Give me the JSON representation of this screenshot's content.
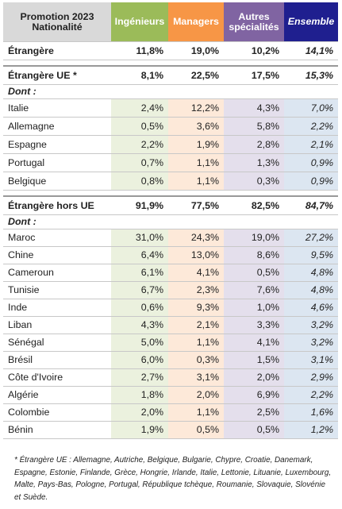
{
  "header": {
    "col0_line1": "Promotion 2023",
    "col0_line2": "Nationalité",
    "col_ing": "Ingénieurs",
    "col_man": "Managers",
    "col_aut_line1": "Autres",
    "col_aut_line2": "spécialités",
    "col_ens": "Ensemble"
  },
  "colors": {
    "header_ingenieurs": "#9bbb59",
    "header_managers": "#f79646",
    "header_autres": "#8064a2",
    "header_ensemble": "#1f1f8f",
    "tint_ingenieurs": "#ebf1de",
    "tint_managers": "#fde9d9",
    "tint_autres": "#e4dfec",
    "tint_ensemble": "#dce6f1"
  },
  "etrangere": {
    "label": "Étrangère",
    "ing": "11,8%",
    "man": "19,0%",
    "aut": "10,2%",
    "ens": "14,1%"
  },
  "ue": {
    "label": "Étrangère UE *",
    "ing": "8,1%",
    "man": "22,5%",
    "aut": "17,5%",
    "ens": "15,3%",
    "dont": "Dont :",
    "rows": [
      {
        "label": "Italie",
        "ing": "2,4%",
        "man": "12,2%",
        "aut": "4,3%",
        "ens": "7,0%"
      },
      {
        "label": "Allemagne",
        "ing": "0,5%",
        "man": "3,6%",
        "aut": "5,8%",
        "ens": "2,2%"
      },
      {
        "label": "Espagne",
        "ing": "2,2%",
        "man": "1,9%",
        "aut": "2,8%",
        "ens": "2,1%"
      },
      {
        "label": "Portugal",
        "ing": "0,7%",
        "man": "1,1%",
        "aut": "1,3%",
        "ens": "0,9%"
      },
      {
        "label": "Belgique",
        "ing": "0,8%",
        "man": "1,1%",
        "aut": "0,3%",
        "ens": "0,9%"
      }
    ]
  },
  "hors_ue": {
    "label": "Étrangère hors UE",
    "ing": "91,9%",
    "man": "77,5%",
    "aut": "82,5%",
    "ens": "84,7%",
    "dont": "Dont :",
    "rows": [
      {
        "label": "Maroc",
        "ing": "31,0%",
        "man": "24,3%",
        "aut": "19,0%",
        "ens": "27,2%"
      },
      {
        "label": "Chine",
        "ing": "6,4%",
        "man": "13,0%",
        "aut": "8,6%",
        "ens": "9,5%"
      },
      {
        "label": "Cameroun",
        "ing": "6,1%",
        "man": "4,1%",
        "aut": "0,5%",
        "ens": "4,8%"
      },
      {
        "label": "Tunisie",
        "ing": "6,7%",
        "man": "2,3%",
        "aut": "7,6%",
        "ens": "4,8%"
      },
      {
        "label": "Inde",
        "ing": "0,6%",
        "man": "9,3%",
        "aut": "1,0%",
        "ens": "4,6%"
      },
      {
        "label": "Liban",
        "ing": "4,3%",
        "man": "2,1%",
        "aut": "3,3%",
        "ens": "3,2%"
      },
      {
        "label": "Sénégal",
        "ing": "5,0%",
        "man": "1,1%",
        "aut": "4,1%",
        "ens": "3,2%"
      },
      {
        "label": "Brésil",
        "ing": "6,0%",
        "man": "0,3%",
        "aut": "1,5%",
        "ens": "3,1%"
      },
      {
        "label": "Côte d'Ivoire",
        "ing": "2,7%",
        "man": "3,1%",
        "aut": "2,0%",
        "ens": "2,9%"
      },
      {
        "label": "Algérie",
        "ing": "1,8%",
        "man": "2,0%",
        "aut": "6,9%",
        "ens": "2,2%"
      },
      {
        "label": "Colombie",
        "ing": "2,0%",
        "man": "1,1%",
        "aut": "2,5%",
        "ens": "1,6%"
      },
      {
        "label": "Bénin",
        "ing": "1,9%",
        "man": "0,5%",
        "aut": "0,5%",
        "ens": "1,2%"
      }
    ]
  },
  "footnote": "* Étrangère UE : Allemagne, Autriche, Belgique, Bulgarie, Chypre, Croatie, Danemark, Espagne, Estonie, Finlande, Grèce, Hongrie, Irlande, Italie, Lettonie, Lituanie, Luxembourg, Malte, Pays-Bas, Pologne, Portugal, République tchèque, Roumanie, Slovaquie, Slovénie et Suède."
}
